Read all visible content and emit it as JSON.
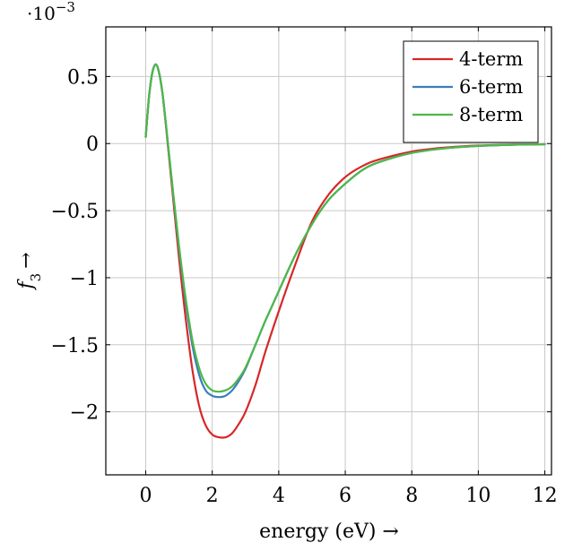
{
  "chart_data": {
    "type": "line",
    "title": "",
    "xlabel": "energy (eV) →",
    "ylabel_var": "f",
    "ylabel_sub": "3",
    "ylabel_arrow": "→",
    "y_scale_prefix": "·10",
    "y_scale_exp": "−3",
    "xlim": [
      -1.2,
      12.2
    ],
    "ylim": [
      -2.47,
      0.87
    ],
    "grid": true,
    "legend_position": "top-right",
    "x_ticks": [
      {
        "v": 0,
        "label": "0"
      },
      {
        "v": 2,
        "label": "2"
      },
      {
        "v": 4,
        "label": "4"
      },
      {
        "v": 6,
        "label": "6"
      },
      {
        "v": 8,
        "label": "8"
      },
      {
        "v": 10,
        "label": "10"
      },
      {
        "v": 12,
        "label": "12"
      }
    ],
    "y_ticks": [
      {
        "v": 0.5,
        "label": "0.5"
      },
      {
        "v": 0,
        "label": "0"
      },
      {
        "v": -0.5,
        "label": "−0.5"
      },
      {
        "v": -1,
        "label": "−1"
      },
      {
        "v": -1.5,
        "label": "−1.5"
      },
      {
        "v": -2,
        "label": "−2"
      }
    ],
    "series": [
      {
        "name": "4-term",
        "color": "#d62728",
        "x": [
          0,
          0.1,
          0.2,
          0.3,
          0.4,
          0.5,
          0.6,
          0.8,
          1.0,
          1.2,
          1.4,
          1.6,
          1.8,
          2.0,
          2.2,
          2.4,
          2.6,
          2.8,
          3.0,
          3.3,
          3.6,
          4.0,
          4.5,
          5.0,
          5.5,
          6.0,
          6.5,
          7.0,
          8.0,
          9.0,
          10.0,
          11.0,
          12.0
        ],
        "y": [
          0.05,
          0.35,
          0.53,
          0.59,
          0.53,
          0.38,
          0.15,
          -0.35,
          -0.85,
          -1.3,
          -1.68,
          -1.95,
          -2.1,
          -2.17,
          -2.19,
          -2.19,
          -2.16,
          -2.09,
          -2.0,
          -1.8,
          -1.55,
          -1.25,
          -0.9,
          -0.58,
          -0.38,
          -0.25,
          -0.17,
          -0.12,
          -0.06,
          -0.03,
          -0.015,
          -0.008,
          -0.005
        ]
      },
      {
        "name": "6-term",
        "color": "#3b7dbf",
        "x": [
          0,
          0.1,
          0.2,
          0.3,
          0.4,
          0.5,
          0.6,
          0.8,
          1.0,
          1.2,
          1.4,
          1.6,
          1.8,
          2.0,
          2.2,
          2.4,
          2.6,
          2.8,
          3.0,
          3.3,
          3.6,
          4.0,
          4.5,
          5.0,
          5.5,
          6.0,
          6.5,
          7.0,
          8.0,
          9.0,
          10.0,
          11.0,
          12.0
        ],
        "y": [
          0.05,
          0.35,
          0.53,
          0.59,
          0.53,
          0.38,
          0.16,
          -0.32,
          -0.78,
          -1.18,
          -1.5,
          -1.72,
          -1.84,
          -1.88,
          -1.89,
          -1.88,
          -1.84,
          -1.77,
          -1.68,
          -1.5,
          -1.32,
          -1.1,
          -0.83,
          -0.6,
          -0.42,
          -0.3,
          -0.2,
          -0.14,
          -0.07,
          -0.035,
          -0.018,
          -0.009,
          -0.005
        ]
      },
      {
        "name": "8-term",
        "color": "#4db848",
        "x": [
          0,
          0.1,
          0.2,
          0.3,
          0.4,
          0.5,
          0.6,
          0.8,
          1.0,
          1.2,
          1.4,
          1.6,
          1.8,
          2.0,
          2.2,
          2.4,
          2.6,
          2.8,
          3.0,
          3.3,
          3.6,
          4.0,
          4.5,
          5.0,
          5.5,
          6.0,
          6.5,
          7.0,
          8.0,
          9.0,
          10.0,
          11.0,
          12.0
        ],
        "y": [
          0.05,
          0.35,
          0.53,
          0.59,
          0.53,
          0.38,
          0.16,
          -0.31,
          -0.76,
          -1.15,
          -1.46,
          -1.67,
          -1.79,
          -1.84,
          -1.85,
          -1.84,
          -1.81,
          -1.75,
          -1.67,
          -1.5,
          -1.32,
          -1.1,
          -0.83,
          -0.6,
          -0.42,
          -0.3,
          -0.2,
          -0.14,
          -0.07,
          -0.035,
          -0.018,
          -0.009,
          -0.005
        ]
      }
    ]
  }
}
